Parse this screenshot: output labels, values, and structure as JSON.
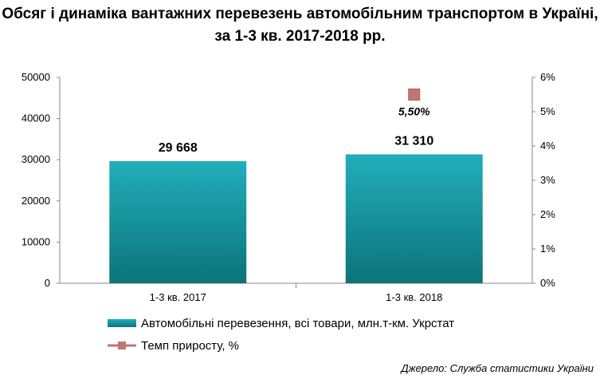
{
  "chart_data": {
    "type": "bar",
    "title": "Обсяг і динаміка вантажних перевезень автомобільним транспортом в Україні, за 1-3 кв. 2017-2018 рр.",
    "categories": [
      "1-3 кв. 2017",
      "1-3 кв. 2018"
    ],
    "series": [
      {
        "name": "Автомобільні перевезення, всі товари, млн.т-км.  Укрстат",
        "type": "bar",
        "axis": "left",
        "values": [
          29668,
          31310
        ],
        "labels": [
          "29 668",
          "31 310"
        ],
        "color": "#1fa4b0"
      },
      {
        "name": "Темп приросту, %",
        "type": "marker",
        "axis": "right",
        "values": [
          null,
          5.5
        ],
        "labels": [
          "",
          "5,50%"
        ],
        "color": "#c0776f"
      }
    ],
    "y_left": {
      "min": 0,
      "max": 50000,
      "ticks": [
        "0",
        "10000",
        "20000",
        "30000",
        "40000",
        "50000"
      ]
    },
    "y_right": {
      "min": 0,
      "max": 6,
      "ticks": [
        "0%",
        "1%",
        "2%",
        "3%",
        "4%",
        "5%",
        "6%"
      ]
    },
    "legend_position": "bottom",
    "grid": false
  },
  "source": "Джерело: Служба статистики України"
}
